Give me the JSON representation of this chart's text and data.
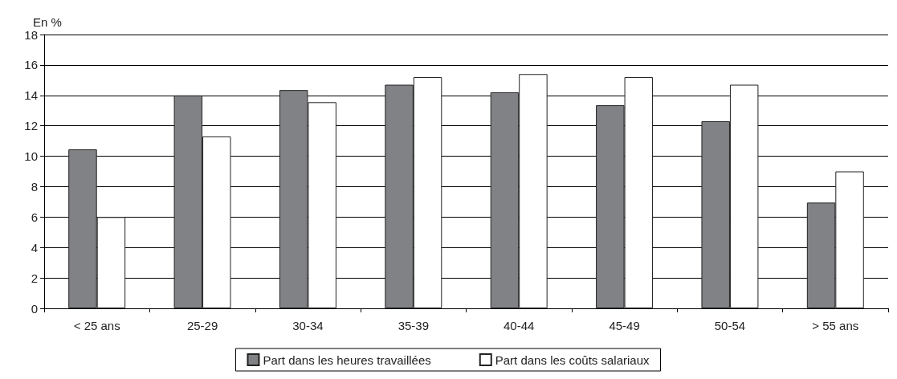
{
  "chart_data": {
    "type": "bar",
    "ylabel": "En %",
    "categories": [
      "< 25 ans",
      "25-29",
      "30-34",
      "35-39",
      "40-44",
      "45-49",
      "50-54",
      "> 55 ans"
    ],
    "series": [
      {
        "name": "Part dans les heures travaillées",
        "color": "#808285",
        "values": [
          10.45,
          14.0,
          14.35,
          14.7,
          14.2,
          13.35,
          12.3,
          6.95
        ]
      },
      {
        "name": "Part dans les coûts salariaux",
        "color": "#ffffff",
        "values": [
          6.0,
          11.3,
          13.55,
          15.2,
          15.4,
          15.2,
          14.7,
          9.0
        ]
      }
    ],
    "ylim": [
      0,
      18
    ],
    "yticks": [
      0,
      2,
      4,
      6,
      8,
      10,
      12,
      14,
      16,
      18
    ],
    "grid": "y",
    "legend": "bottom"
  }
}
